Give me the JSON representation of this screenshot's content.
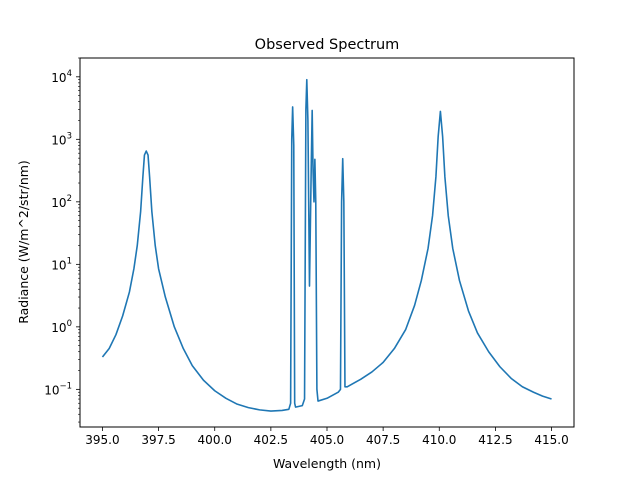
{
  "chart_data": {
    "type": "line",
    "title": "Observed Spectrum",
    "xlabel": "Wavelength (nm)",
    "ylabel": "Radiance (W/m^2/str/nm)",
    "xlim": [
      394.0,
      416.0
    ],
    "ylim": [
      0.025,
      20000
    ],
    "yscale": "log",
    "grid": false,
    "x_ticks": [
      395.0,
      397.5,
      400.0,
      402.5,
      405.0,
      407.5,
      410.0,
      412.5,
      415.0
    ],
    "x_tick_labels": [
      "395.0",
      "397.5",
      "400.0",
      "402.5",
      "405.0",
      "407.5",
      "410.0",
      "412.5",
      "415.0"
    ],
    "y_ticks": [
      {
        "value": 0.1,
        "base": "10",
        "exp": "−1"
      },
      {
        "value": 1,
        "base": "10",
        "exp": "0"
      },
      {
        "value": 10,
        "base": "10",
        "exp": "1"
      },
      {
        "value": 100,
        "base": "10",
        "exp": "2"
      },
      {
        "value": 1000,
        "base": "10",
        "exp": "3"
      },
      {
        "value": 10000,
        "base": "10",
        "exp": "4"
      }
    ],
    "series": [
      {
        "color": "#1f77b4",
        "points": [
          [
            395.0,
            0.33
          ],
          [
            395.3,
            0.45
          ],
          [
            395.6,
            0.75
          ],
          [
            395.9,
            1.5
          ],
          [
            396.2,
            3.6
          ],
          [
            396.4,
            8.5
          ],
          [
            396.55,
            20
          ],
          [
            396.7,
            70
          ],
          [
            396.8,
            250
          ],
          [
            396.87,
            560
          ],
          [
            396.95,
            650
          ],
          [
            397.03,
            560
          ],
          [
            397.1,
            250
          ],
          [
            397.2,
            70
          ],
          [
            397.35,
            20
          ],
          [
            397.5,
            8.5
          ],
          [
            397.8,
            3.0
          ],
          [
            398.2,
            1.0
          ],
          [
            398.6,
            0.45
          ],
          [
            399.0,
            0.24
          ],
          [
            399.5,
            0.14
          ],
          [
            400.0,
            0.095
          ],
          [
            400.5,
            0.072
          ],
          [
            401.0,
            0.058
          ],
          [
            401.5,
            0.051
          ],
          [
            402.0,
            0.047
          ],
          [
            402.5,
            0.045
          ],
          [
            403.0,
            0.046
          ],
          [
            403.3,
            0.048
          ],
          [
            403.38,
            0.06
          ],
          [
            403.43,
            1000
          ],
          [
            403.47,
            3300
          ],
          [
            403.52,
            800
          ],
          [
            403.56,
            0.06
          ],
          [
            403.6,
            0.052
          ],
          [
            403.9,
            0.055
          ],
          [
            404.0,
            0.07
          ],
          [
            404.06,
            3000
          ],
          [
            404.1,
            9000
          ],
          [
            404.15,
            2000
          ],
          [
            404.22,
            4.5
          ],
          [
            404.3,
            400
          ],
          [
            404.34,
            2900
          ],
          [
            404.38,
            300
          ],
          [
            404.42,
            100
          ],
          [
            404.46,
            480
          ],
          [
            404.5,
            100
          ],
          [
            404.55,
            0.1
          ],
          [
            404.6,
            0.065
          ],
          [
            405.0,
            0.072
          ],
          [
            405.5,
            0.09
          ],
          [
            405.6,
            0.1
          ],
          [
            405.65,
            100
          ],
          [
            405.7,
            490
          ],
          [
            405.75,
            100
          ],
          [
            405.8,
            0.11
          ],
          [
            405.9,
            0.11
          ],
          [
            406.5,
            0.145
          ],
          [
            407.0,
            0.19
          ],
          [
            407.5,
            0.27
          ],
          [
            408.0,
            0.45
          ],
          [
            408.5,
            0.9
          ],
          [
            408.9,
            2.2
          ],
          [
            409.2,
            5.5
          ],
          [
            409.5,
            18
          ],
          [
            409.7,
            60
          ],
          [
            409.85,
            250
          ],
          [
            409.95,
            1100
          ],
          [
            410.05,
            2800
          ],
          [
            410.15,
            1100
          ],
          [
            410.25,
            250
          ],
          [
            410.4,
            60
          ],
          [
            410.6,
            18
          ],
          [
            410.9,
            5.5
          ],
          [
            411.3,
            1.8
          ],
          [
            411.7,
            0.8
          ],
          [
            412.2,
            0.4
          ],
          [
            412.7,
            0.23
          ],
          [
            413.2,
            0.15
          ],
          [
            413.7,
            0.11
          ],
          [
            414.2,
            0.09
          ],
          [
            414.6,
            0.078
          ],
          [
            415.0,
            0.07
          ]
        ]
      }
    ]
  }
}
